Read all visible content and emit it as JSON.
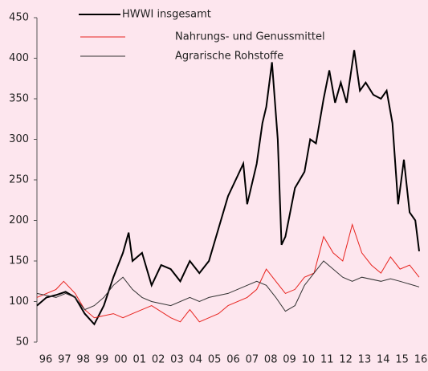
{
  "chart_data": {
    "type": "line",
    "series": [
      {
        "name": "HWWI insgesamt",
        "color": "#000000",
        "width": 2,
        "x": [
          1996.0,
          1996.5,
          1997.0,
          1997.5,
          1998.0,
          1998.5,
          1999.0,
          1999.5,
          2000.0,
          2000.5,
          2000.8,
          2001.0,
          2001.5,
          2002.0,
          2002.5,
          2003.0,
          2003.5,
          2004.0,
          2004.5,
          2005.0,
          2005.5,
          2006.0,
          2006.5,
          2006.8,
          2007.0,
          2007.5,
          2007.8,
          2008.0,
          2008.3,
          2008.6,
          2008.8,
          2009.0,
          2009.5,
          2010.0,
          2010.3,
          2010.6,
          2011.0,
          2011.3,
          2011.6,
          2011.9,
          2012.2,
          2012.6,
          2012.9,
          2013.2,
          2013.6,
          2014.0,
          2014.3,
          2014.6,
          2014.9,
          2015.2,
          2015.5,
          2015.8,
          2016.0
        ],
        "values": [
          95,
          105,
          108,
          112,
          105,
          85,
          72,
          95,
          130,
          160,
          185,
          150,
          160,
          120,
          145,
          140,
          125,
          150,
          135,
          150,
          190,
          230,
          255,
          270,
          220,
          270,
          320,
          340,
          395,
          300,
          170,
          180,
          240,
          260,
          300,
          295,
          350,
          385,
          345,
          370,
          345,
          410,
          360,
          370,
          355,
          350,
          360,
          320,
          220,
          275,
          210,
          200,
          162
        ]
      },
      {
        "name": "Nahrungs- und Genussmittel",
        "color": "#e8231e",
        "width": 1,
        "x": [
          1996.0,
          1997.0,
          1997.4,
          1998.0,
          1998.5,
          1999.0,
          2000.0,
          2000.5,
          2001.0,
          2002.0,
          2003.0,
          2003.5,
          2004.0,
          2004.5,
          2005.0,
          2005.5,
          2006.0,
          2007.0,
          2007.5,
          2008.0,
          2008.5,
          2009.0,
          2009.5,
          2010.0,
          2010.5,
          2011.0,
          2011.5,
          2012.0,
          2012.5,
          2013.0,
          2013.5,
          2014.0,
          2014.5,
          2015.0,
          2015.5,
          2016.0
        ],
        "values": [
          105,
          115,
          125,
          110,
          90,
          80,
          85,
          80,
          85,
          95,
          80,
          75,
          90,
          75,
          80,
          85,
          95,
          105,
          115,
          140,
          125,
          110,
          115,
          130,
          135,
          180,
          160,
          150,
          195,
          160,
          145,
          135,
          155,
          140,
          145,
          130
        ]
      },
      {
        "name": "Agrarische Rohstoffe",
        "color": "#333333",
        "width": 1,
        "x": [
          1996.0,
          1997.0,
          1997.5,
          1998.0,
          1998.5,
          1999.0,
          1999.5,
          2000.0,
          2000.5,
          2001.0,
          2001.5,
          2002.0,
          2003.0,
          2004.0,
          2004.5,
          2005.0,
          2006.0,
          2007.0,
          2007.5,
          2008.0,
          2008.5,
          2009.0,
          2009.5,
          2010.0,
          2010.5,
          2011.0,
          2011.5,
          2012.0,
          2012.5,
          2013.0,
          2014.0,
          2014.5,
          2015.0,
          2016.0
        ],
        "values": [
          110,
          105,
          110,
          105,
          90,
          95,
          105,
          120,
          130,
          115,
          105,
          100,
          95,
          105,
          100,
          105,
          110,
          120,
          125,
          120,
          105,
          88,
          95,
          120,
          135,
          150,
          140,
          130,
          125,
          130,
          125,
          128,
          125,
          118
        ]
      }
    ],
    "xlim": [
      1996,
      2016
    ],
    "xticks": [
      {
        "value": 1996,
        "label": "96"
      },
      {
        "value": 1997,
        "label": "97"
      },
      {
        "value": 1998,
        "label": "98"
      },
      {
        "value": 1999,
        "label": "99"
      },
      {
        "value": 2000,
        "label": "00"
      },
      {
        "value": 2001,
        "label": "01"
      },
      {
        "value": 2002,
        "label": "02"
      },
      {
        "value": 2003,
        "label": "03"
      },
      {
        "value": 2004,
        "label": "04"
      },
      {
        "value": 2005,
        "label": "05"
      },
      {
        "value": 2006,
        "label": "06"
      },
      {
        "value": 2007,
        "label": "07"
      },
      {
        "value": 2008,
        "label": "08"
      },
      {
        "value": 2009,
        "label": "09"
      },
      {
        "value": 2010,
        "label": "10"
      },
      {
        "value": 2011,
        "label": "11"
      },
      {
        "value": 2012,
        "label": "12"
      },
      {
        "value": 2013,
        "label": "13"
      },
      {
        "value": 2014,
        "label": "14"
      },
      {
        "value": 2015,
        "label": "15"
      },
      {
        "value": 2016,
        "label": "16"
      }
    ],
    "ylim": [
      50,
      450
    ],
    "yticks": [
      50,
      100,
      150,
      200,
      250,
      300,
      350,
      400,
      450
    ]
  }
}
